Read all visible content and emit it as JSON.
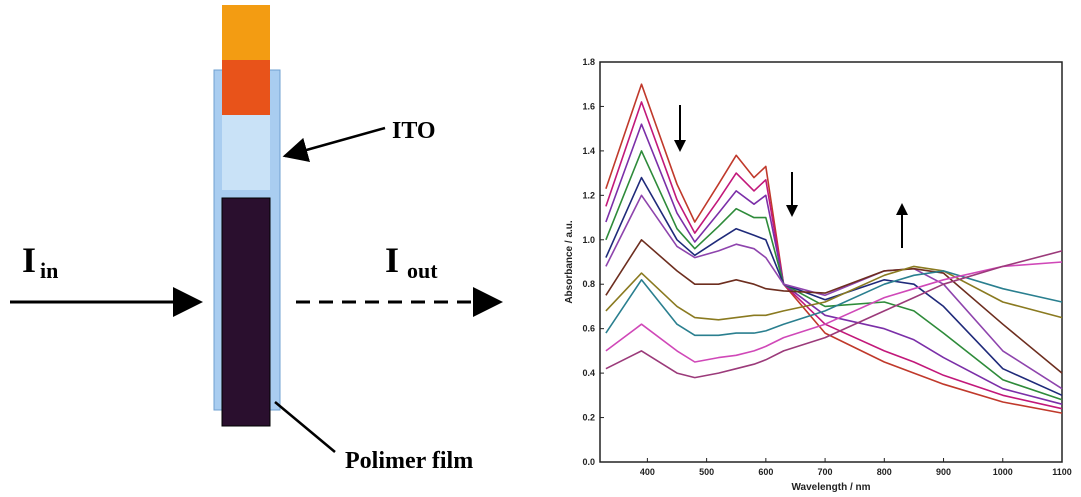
{
  "diagram": {
    "in_label": {
      "symbol": "I",
      "subscript": "in"
    },
    "out_label": {
      "symbol": "I",
      "subscript": "out"
    },
    "ito_label": "ITO",
    "film_label": "Polimer film"
  },
  "chart_data": {
    "type": "line",
    "xlabel": "Wavelength / nm",
    "ylabel": "Absorbance / a.u.",
    "xlim": [
      320,
      1100
    ],
    "ylim": [
      0,
      1.8
    ],
    "xticks": [
      400,
      500,
      600,
      700,
      800,
      900,
      1000,
      1100
    ],
    "yticks": [
      {
        "value": 0,
        "label": "0.0"
      },
      0.2,
      0.4,
      0.6,
      0.8,
      {
        "value": 1,
        "label": "1.0"
      },
      1.2,
      1.4,
      1.6,
      1.8
    ],
    "x": [
      330,
      390,
      450,
      480,
      520,
      550,
      580,
      600,
      630,
      700,
      800,
      850,
      900,
      1000,
      1100
    ],
    "series": [
      {
        "color": "#c0392b",
        "values": [
          1.23,
          1.7,
          1.25,
          1.08,
          1.25,
          1.38,
          1.28,
          1.33,
          0.8,
          0.58,
          0.45,
          0.4,
          0.35,
          0.27,
          0.22
        ]
      },
      {
        "color": "#c2187a",
        "values": [
          1.15,
          1.62,
          1.18,
          1.03,
          1.18,
          1.3,
          1.22,
          1.27,
          0.8,
          0.62,
          0.5,
          0.45,
          0.39,
          0.3,
          0.24
        ]
      },
      {
        "color": "#7b2fa8",
        "values": [
          1.08,
          1.52,
          1.12,
          0.99,
          1.12,
          1.22,
          1.16,
          1.2,
          0.8,
          0.66,
          0.6,
          0.55,
          0.47,
          0.33,
          0.26
        ]
      },
      {
        "color": "#2e8b3a",
        "values": [
          1.0,
          1.4,
          1.05,
          0.96,
          1.06,
          1.14,
          1.1,
          1.1,
          0.8,
          0.7,
          0.72,
          0.68,
          0.58,
          0.37,
          0.28
        ]
      },
      {
        "color": "#1f2a7a",
        "values": [
          0.92,
          1.28,
          1.0,
          0.93,
          1.0,
          1.05,
          1.02,
          1.0,
          0.8,
          0.73,
          0.82,
          0.8,
          0.7,
          0.42,
          0.3
        ]
      },
      {
        "color": "#8e44ad",
        "values": [
          0.88,
          1.2,
          0.97,
          0.92,
          0.95,
          0.98,
          0.96,
          0.92,
          0.8,
          0.75,
          0.86,
          0.87,
          0.8,
          0.5,
          0.33
        ]
      },
      {
        "color": "#6d2e1f",
        "values": [
          0.75,
          1.0,
          0.86,
          0.8,
          0.8,
          0.82,
          0.8,
          0.78,
          0.77,
          0.76,
          0.86,
          0.87,
          0.85,
          0.62,
          0.4
        ]
      },
      {
        "color": "#8a7a20",
        "values": [
          0.68,
          0.85,
          0.7,
          0.65,
          0.64,
          0.65,
          0.66,
          0.66,
          0.68,
          0.72,
          0.84,
          0.88,
          0.86,
          0.72,
          0.65
        ]
      },
      {
        "color": "#2a7f8f",
        "values": [
          0.58,
          0.82,
          0.62,
          0.57,
          0.57,
          0.58,
          0.58,
          0.59,
          0.62,
          0.68,
          0.8,
          0.84,
          0.86,
          0.78,
          0.72
        ]
      },
      {
        "color": "#d048b8",
        "values": [
          0.5,
          0.62,
          0.5,
          0.45,
          0.47,
          0.48,
          0.5,
          0.52,
          0.56,
          0.62,
          0.74,
          0.78,
          0.82,
          0.88,
          0.9
        ]
      },
      {
        "color": "#9b3a7a",
        "values": [
          0.42,
          0.5,
          0.4,
          0.38,
          0.4,
          0.42,
          0.44,
          0.46,
          0.5,
          0.56,
          0.68,
          0.74,
          0.8,
          0.88,
          0.95
        ]
      }
    ]
  }
}
